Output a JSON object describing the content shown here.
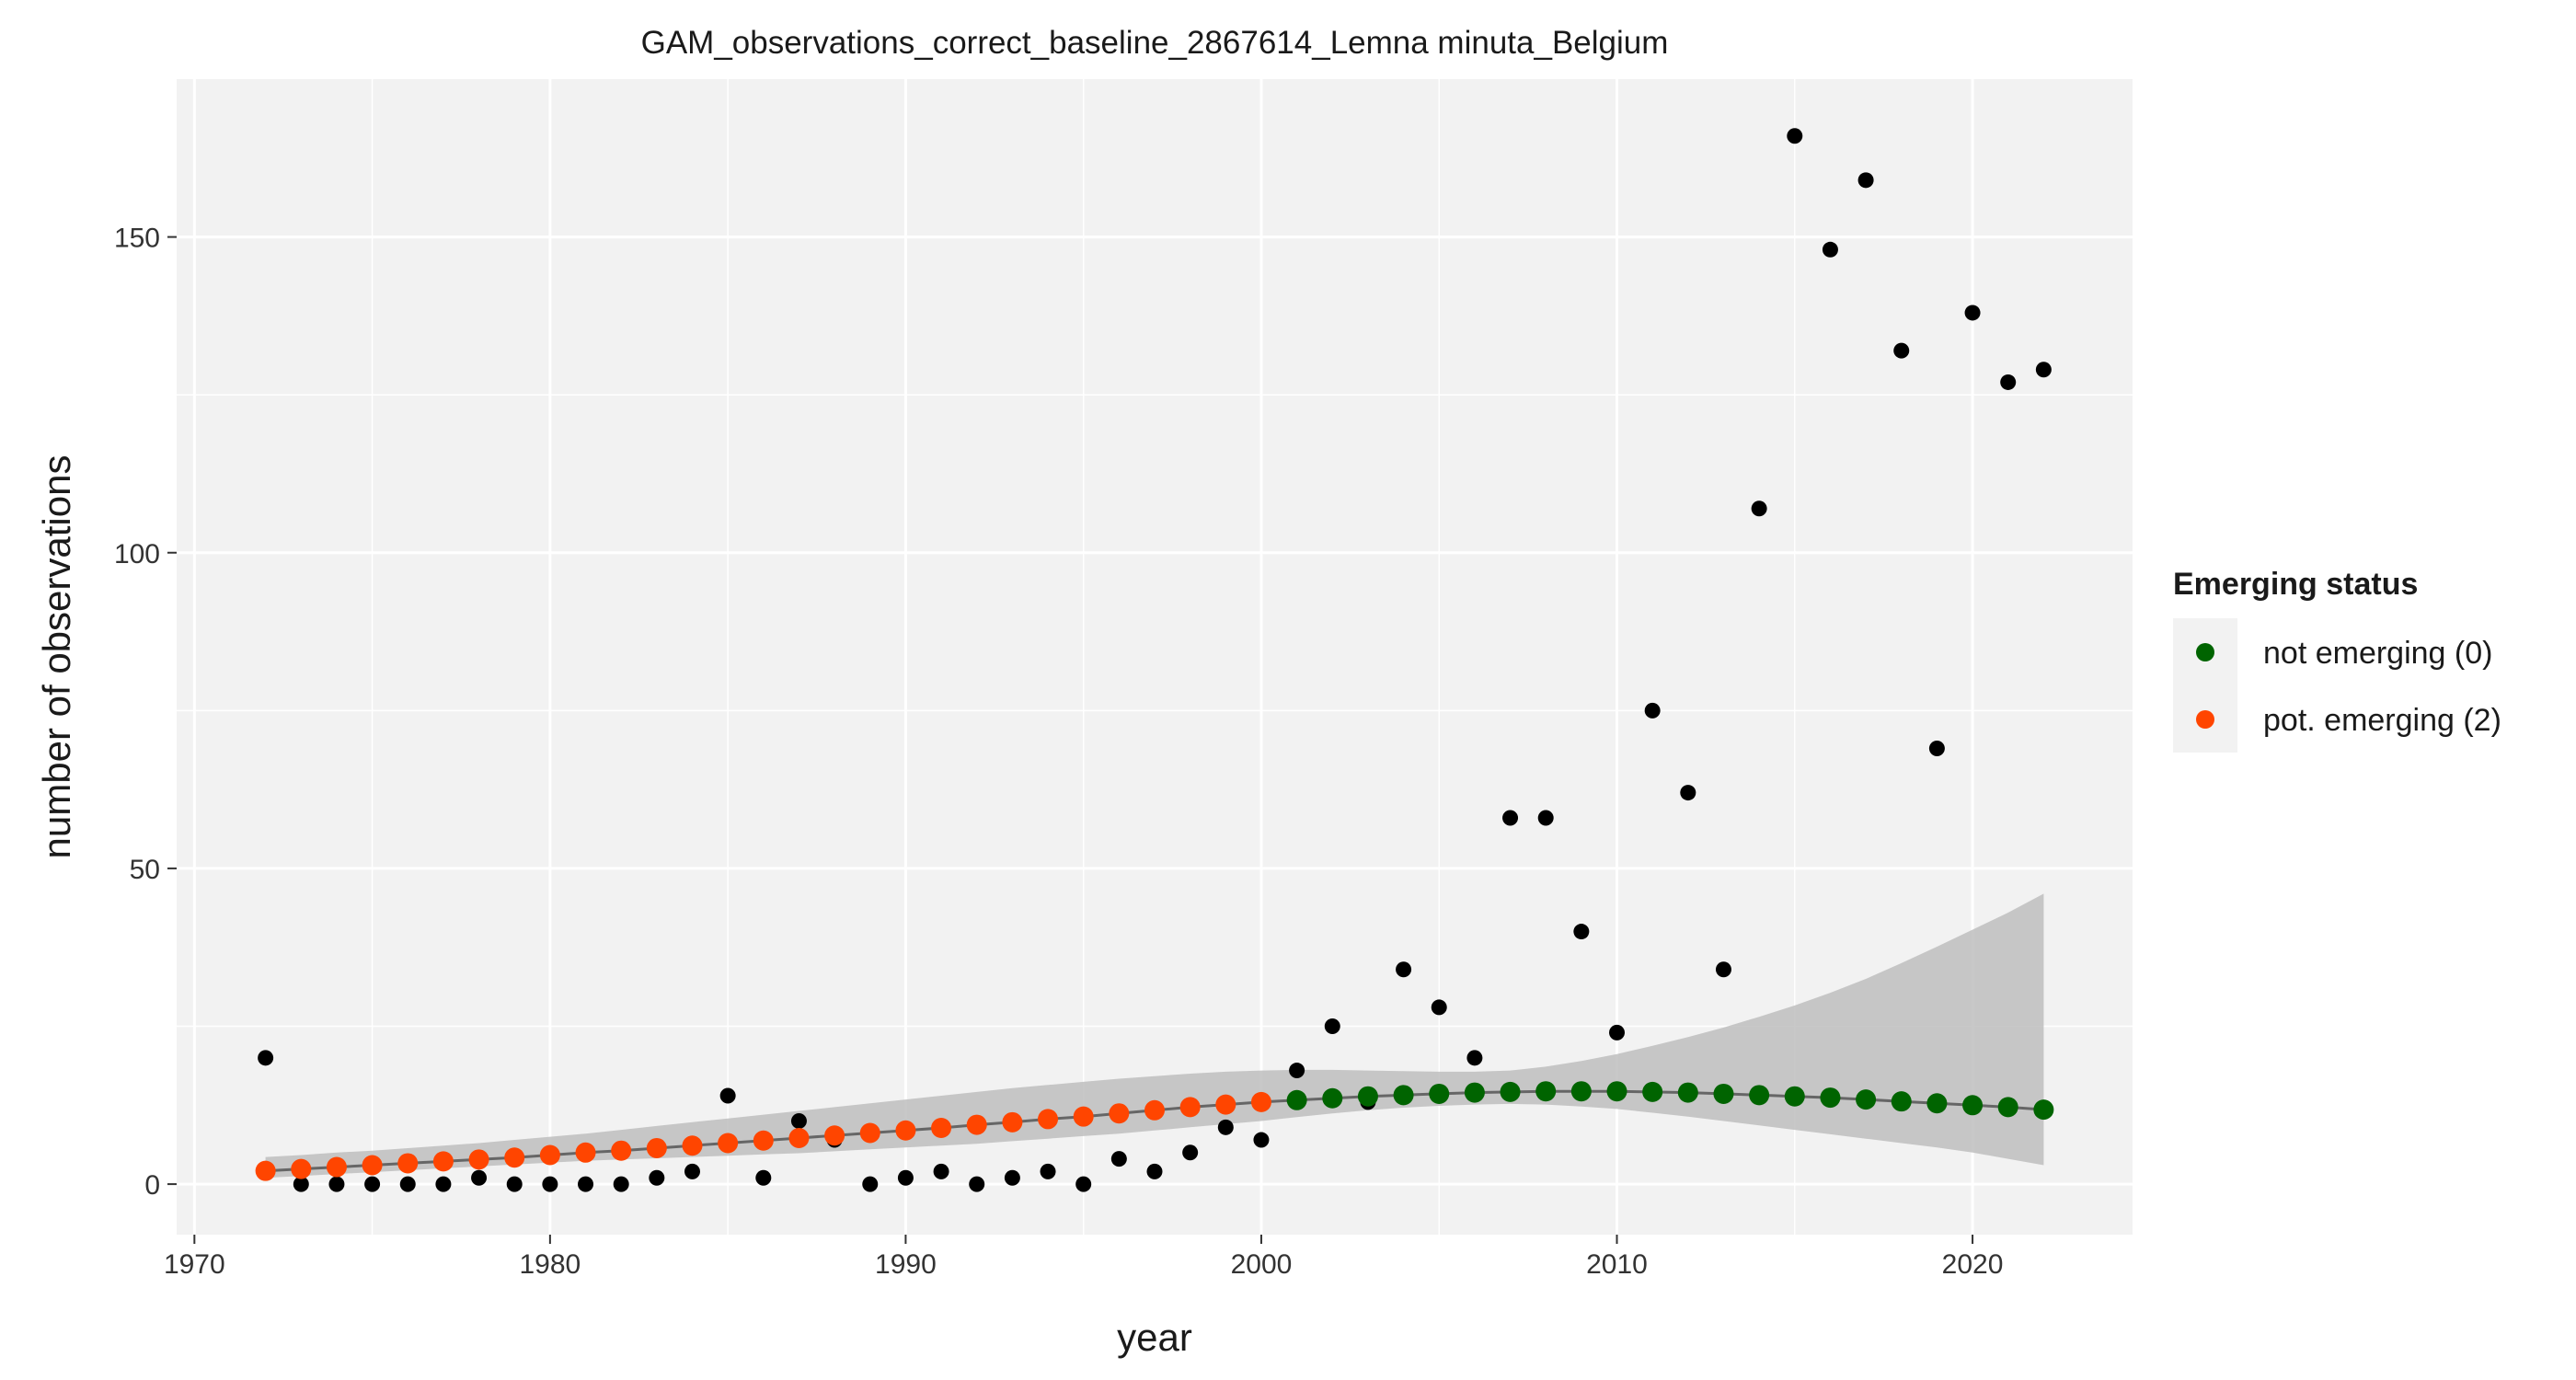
{
  "chart_data": {
    "type": "scatter",
    "title": "GAM_observations_correct_baseline_2867614_Lemna minuta_Belgium",
    "xlabel": "year",
    "ylabel": "number of observations",
    "xlim": [
      1969.5,
      2024.5
    ],
    "ylim": [
      -8,
      175
    ],
    "x_ticks": [
      1970,
      1980,
      1990,
      2000,
      2010,
      2020
    ],
    "y_ticks": [
      0,
      50,
      100,
      150
    ],
    "grid": true,
    "legend": {
      "title": "Emerging status",
      "position": "right",
      "entries": [
        {
          "label": "not emerging (0)",
          "color": "#006400"
        },
        {
          "label": "pot. emerging (2)",
          "color": "#FF4500"
        }
      ]
    },
    "observed": {
      "color": "#000000",
      "x": [
        1972,
        1973,
        1974,
        1975,
        1976,
        1977,
        1978,
        1979,
        1980,
        1981,
        1982,
        1983,
        1984,
        1985,
        1986,
        1987,
        1988,
        1989,
        1990,
        1991,
        1992,
        1993,
        1994,
        1995,
        1996,
        1997,
        1998,
        1999,
        2000,
        2001,
        2002,
        2003,
        2004,
        2005,
        2006,
        2007,
        2008,
        2009,
        2010,
        2011,
        2012,
        2013,
        2014,
        2015,
        2016,
        2017,
        2018,
        2019,
        2020,
        2021,
        2022
      ],
      "y": [
        20,
        0,
        0,
        0,
        0,
        0,
        1,
        0,
        0,
        0,
        0,
        1,
        2,
        14,
        1,
        10,
        7,
        0,
        1,
        2,
        0,
        1,
        2,
        0,
        4,
        2,
        5,
        9,
        7,
        18,
        25,
        13,
        34,
        28,
        20,
        58,
        58,
        40,
        24,
        75,
        62,
        34,
        107,
        166,
        148,
        159,
        132,
        69,
        138,
        127,
        129
      ]
    },
    "fitted": {
      "x": [
        1972,
        1973,
        1974,
        1975,
        1976,
        1977,
        1978,
        1979,
        1980,
        1981,
        1982,
        1983,
        1984,
        1985,
        1986,
        1987,
        1988,
        1989,
        1990,
        1991,
        1992,
        1993,
        1994,
        1995,
        1996,
        1997,
        1998,
        1999,
        2000,
        2001,
        2002,
        2003,
        2004,
        2005,
        2006,
        2007,
        2008,
        2009,
        2010,
        2011,
        2012,
        2013,
        2014,
        2015,
        2016,
        2017,
        2018,
        2019,
        2020,
        2021,
        2022
      ],
      "y": [
        2.1,
        2.4,
        2.7,
        3.0,
        3.3,
        3.6,
        3.9,
        4.2,
        4.6,
        5.0,
        5.3,
        5.7,
        6.1,
        6.5,
        6.9,
        7.3,
        7.7,
        8.1,
        8.5,
        8.9,
        9.4,
        9.8,
        10.3,
        10.7,
        11.2,
        11.7,
        12.2,
        12.6,
        13.0,
        13.3,
        13.6,
        13.9,
        14.1,
        14.3,
        14.5,
        14.6,
        14.7,
        14.7,
        14.7,
        14.6,
        14.5,
        14.3,
        14.1,
        13.9,
        13.7,
        13.4,
        13.1,
        12.8,
        12.5,
        12.2,
        11.8
      ],
      "status": [
        2,
        2,
        2,
        2,
        2,
        2,
        2,
        2,
        2,
        2,
        2,
        2,
        2,
        2,
        2,
        2,
        2,
        2,
        2,
        2,
        2,
        2,
        2,
        2,
        2,
        2,
        2,
        2,
        2,
        0,
        0,
        0,
        0,
        0,
        0,
        0,
        0,
        0,
        0,
        0,
        0,
        0,
        0,
        0,
        0,
        0,
        0,
        0,
        0,
        0,
        0
      ],
      "lower": [
        1.0,
        1.3,
        1.6,
        1.9,
        2.2,
        2.5,
        2.8,
        3.1,
        3.4,
        3.7,
        3.9,
        4.1,
        4.3,
        4.5,
        4.7,
        4.9,
        5.2,
        5.5,
        5.8,
        6.1,
        6.4,
        6.8,
        7.2,
        7.6,
        8.0,
        8.5,
        9.0,
        9.5,
        10.0,
        10.6,
        11.2,
        11.7,
        12.1,
        12.4,
        12.6,
        12.7,
        12.6,
        12.3,
        11.9,
        11.3,
        10.7,
        10.0,
        9.3,
        8.6,
        7.9,
        7.2,
        6.5,
        5.8,
        5.0,
        4.0,
        3.0
      ],
      "upper": [
        4.3,
        4.6,
        5.0,
        5.3,
        5.7,
        6.1,
        6.5,
        7.0,
        7.5,
        8.0,
        8.6,
        9.2,
        9.8,
        10.4,
        11.0,
        11.6,
        12.2,
        12.8,
        13.4,
        14.0,
        14.6,
        15.2,
        15.7,
        16.2,
        16.7,
        17.1,
        17.5,
        17.8,
        18.0,
        18.1,
        18.1,
        18.0,
        17.9,
        17.8,
        17.8,
        18.0,
        18.6,
        19.5,
        20.6,
        21.9,
        23.3,
        24.8,
        26.5,
        28.3,
        30.3,
        32.5,
        35.0,
        37.6,
        40.3,
        43.0,
        46.0
      ],
      "band_color": "#BEBEBE",
      "line_color": "#666666"
    }
  }
}
